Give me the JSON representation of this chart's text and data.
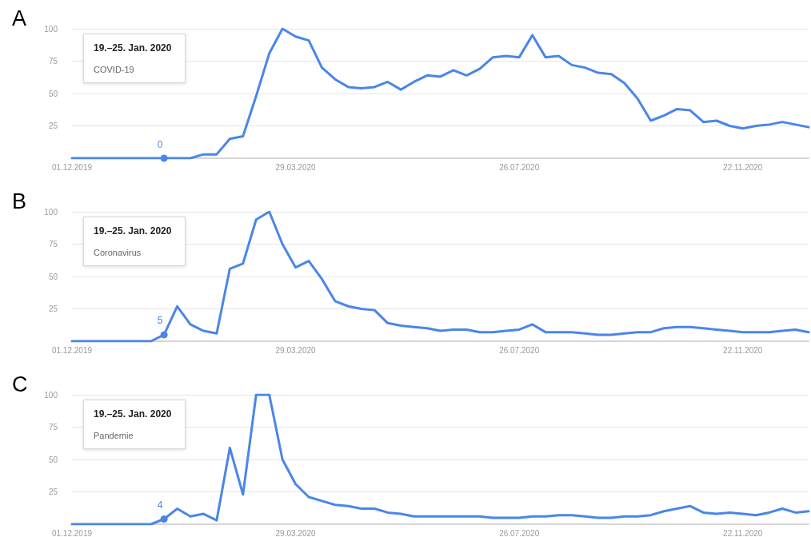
{
  "chart_data": [
    {
      "type": "line",
      "title": "A",
      "categories": [
        "01.12.2019",
        null,
        null,
        null,
        null,
        null,
        null,
        null,
        null,
        null,
        null,
        null,
        null,
        null,
        null,
        null,
        null,
        "29.03.2020",
        null,
        null,
        null,
        null,
        null,
        null,
        null,
        null,
        null,
        null,
        null,
        null,
        null,
        null,
        null,
        null,
        "26.07.2020",
        null,
        null,
        null,
        null,
        null,
        null,
        null,
        null,
        null,
        null,
        null,
        null,
        null,
        null,
        null,
        null,
        "22.11.2020",
        null,
        null,
        null,
        null,
        null
      ],
      "series": [
        {
          "name": "COVID-19",
          "color": "#4a86e8",
          "values": [
            0,
            0,
            0,
            0,
            0,
            0,
            0,
            0,
            0,
            0,
            3,
            3,
            15,
            17,
            48,
            81,
            100,
            94,
            91,
            70,
            61,
            55,
            54,
            55,
            59,
            53,
            59,
            64,
            63,
            68,
            64,
            69,
            78,
            79,
            78,
            95,
            78,
            79,
            72,
            70,
            66,
            65,
            58,
            46,
            29,
            33,
            38,
            37,
            28,
            29,
            25,
            23,
            25,
            26,
            28,
            26,
            24
          ],
          "value_labels": [
            null,
            null,
            null,
            null,
            null,
            null,
            null,
            "0",
            null,
            null,
            null,
            null,
            null,
            null,
            null,
            null,
            null,
            null,
            null,
            null,
            null,
            null,
            null,
            null,
            null,
            null,
            null,
            null,
            null,
            null,
            null,
            null,
            null,
            null,
            null,
            null,
            null,
            null,
            null,
            null,
            null,
            null,
            null,
            null,
            null,
            null,
            null,
            null,
            null,
            null,
            null,
            null,
            null,
            null,
            null,
            null,
            null
          ]
        }
      ],
      "ylim": [
        0,
        100
      ],
      "yticks": [
        25,
        50,
        75,
        100
      ],
      "grid": "y",
      "annotations": [
        "19.–25. Jan. 2020"
      ]
    },
    {
      "type": "line",
      "title": "B",
      "categories": [
        "01.12.2019",
        null,
        null,
        null,
        null,
        null,
        null,
        null,
        null,
        null,
        null,
        null,
        null,
        null,
        null,
        null,
        null,
        "29.03.2020",
        null,
        null,
        null,
        null,
        null,
        null,
        null,
        null,
        null,
        null,
        null,
        null,
        null,
        null,
        null,
        null,
        "26.07.2020",
        null,
        null,
        null,
        null,
        null,
        null,
        null,
        null,
        null,
        null,
        null,
        null,
        null,
        null,
        null,
        null,
        "22.11.2020",
        null,
        null,
        null,
        null,
        null
      ],
      "series": [
        {
          "name": "Coronavirus",
          "color": "#4a86e8",
          "values": [
            0,
            0,
            0,
            0,
            0,
            0,
            0,
            5,
            27,
            13,
            8,
            6,
            56,
            60,
            94,
            100,
            75,
            57,
            62,
            48,
            31,
            27,
            25,
            24,
            14,
            12,
            11,
            10,
            8,
            9,
            9,
            7,
            7,
            8,
            9,
            13,
            7,
            7,
            7,
            6,
            5,
            5,
            6,
            7,
            7,
            10,
            11,
            11,
            10,
            9,
            8,
            7,
            7,
            7,
            8,
            9,
            7
          ],
          "value_labels": [
            null,
            null,
            null,
            null,
            null,
            null,
            null,
            "5",
            null,
            null,
            null,
            null,
            null,
            null,
            null,
            null,
            null,
            null,
            null,
            null,
            null,
            null,
            null,
            null,
            null,
            null,
            null,
            null,
            null,
            null,
            null,
            null,
            null,
            null,
            null,
            null,
            null,
            null,
            null,
            null,
            null,
            null,
            null,
            null,
            null,
            null,
            null,
            null,
            null,
            null,
            null,
            null,
            null,
            null,
            null,
            null,
            null
          ]
        }
      ],
      "ylim": [
        0,
        100
      ],
      "yticks": [
        25,
        50,
        75,
        100
      ],
      "grid": "y",
      "annotations": [
        "19.–25. Jan. 2020"
      ]
    },
    {
      "type": "line",
      "title": "C",
      "categories": [
        "01.12.2019",
        null,
        null,
        null,
        null,
        null,
        null,
        null,
        null,
        null,
        null,
        null,
        null,
        null,
        null,
        null,
        null,
        "29.03.2020",
        null,
        null,
        null,
        null,
        null,
        null,
        null,
        null,
        null,
        null,
        null,
        null,
        null,
        null,
        null,
        null,
        "26.07.2020",
        null,
        null,
        null,
        null,
        null,
        null,
        null,
        null,
        null,
        null,
        null,
        null,
        null,
        null,
        null,
        null,
        "22.11.2020",
        null,
        null,
        null,
        null,
        null
      ],
      "series": [
        {
          "name": "Pandemie",
          "color": "#4a86e8",
          "values": [
            0,
            0,
            0,
            0,
            0,
            0,
            0,
            4,
            12,
            6,
            8,
            3,
            59,
            23,
            100,
            100,
            50,
            31,
            21,
            18,
            15,
            14,
            12,
            12,
            9,
            8,
            6,
            6,
            6,
            6,
            6,
            6,
            5,
            5,
            5,
            6,
            6,
            7,
            7,
            6,
            5,
            5,
            6,
            6,
            7,
            10,
            12,
            14,
            9,
            8,
            9,
            8,
            7,
            9,
            12,
            9,
            10
          ],
          "value_labels": [
            null,
            null,
            null,
            null,
            null,
            null,
            null,
            "4",
            null,
            null,
            null,
            null,
            null,
            null,
            null,
            null,
            null,
            null,
            null,
            null,
            null,
            null,
            null,
            null,
            null,
            null,
            null,
            null,
            null,
            null,
            null,
            null,
            null,
            null,
            null,
            null,
            null,
            null,
            null,
            null,
            null,
            null,
            null,
            null,
            null,
            null,
            null,
            null,
            null,
            null,
            null,
            null,
            null,
            null,
            null,
            null,
            null
          ]
        }
      ],
      "ylim": [
        0,
        100
      ],
      "yticks": [
        25,
        50,
        75,
        100
      ],
      "grid": "y",
      "annotations": [
        "19.–25. Jan. 2020"
      ]
    }
  ]
}
